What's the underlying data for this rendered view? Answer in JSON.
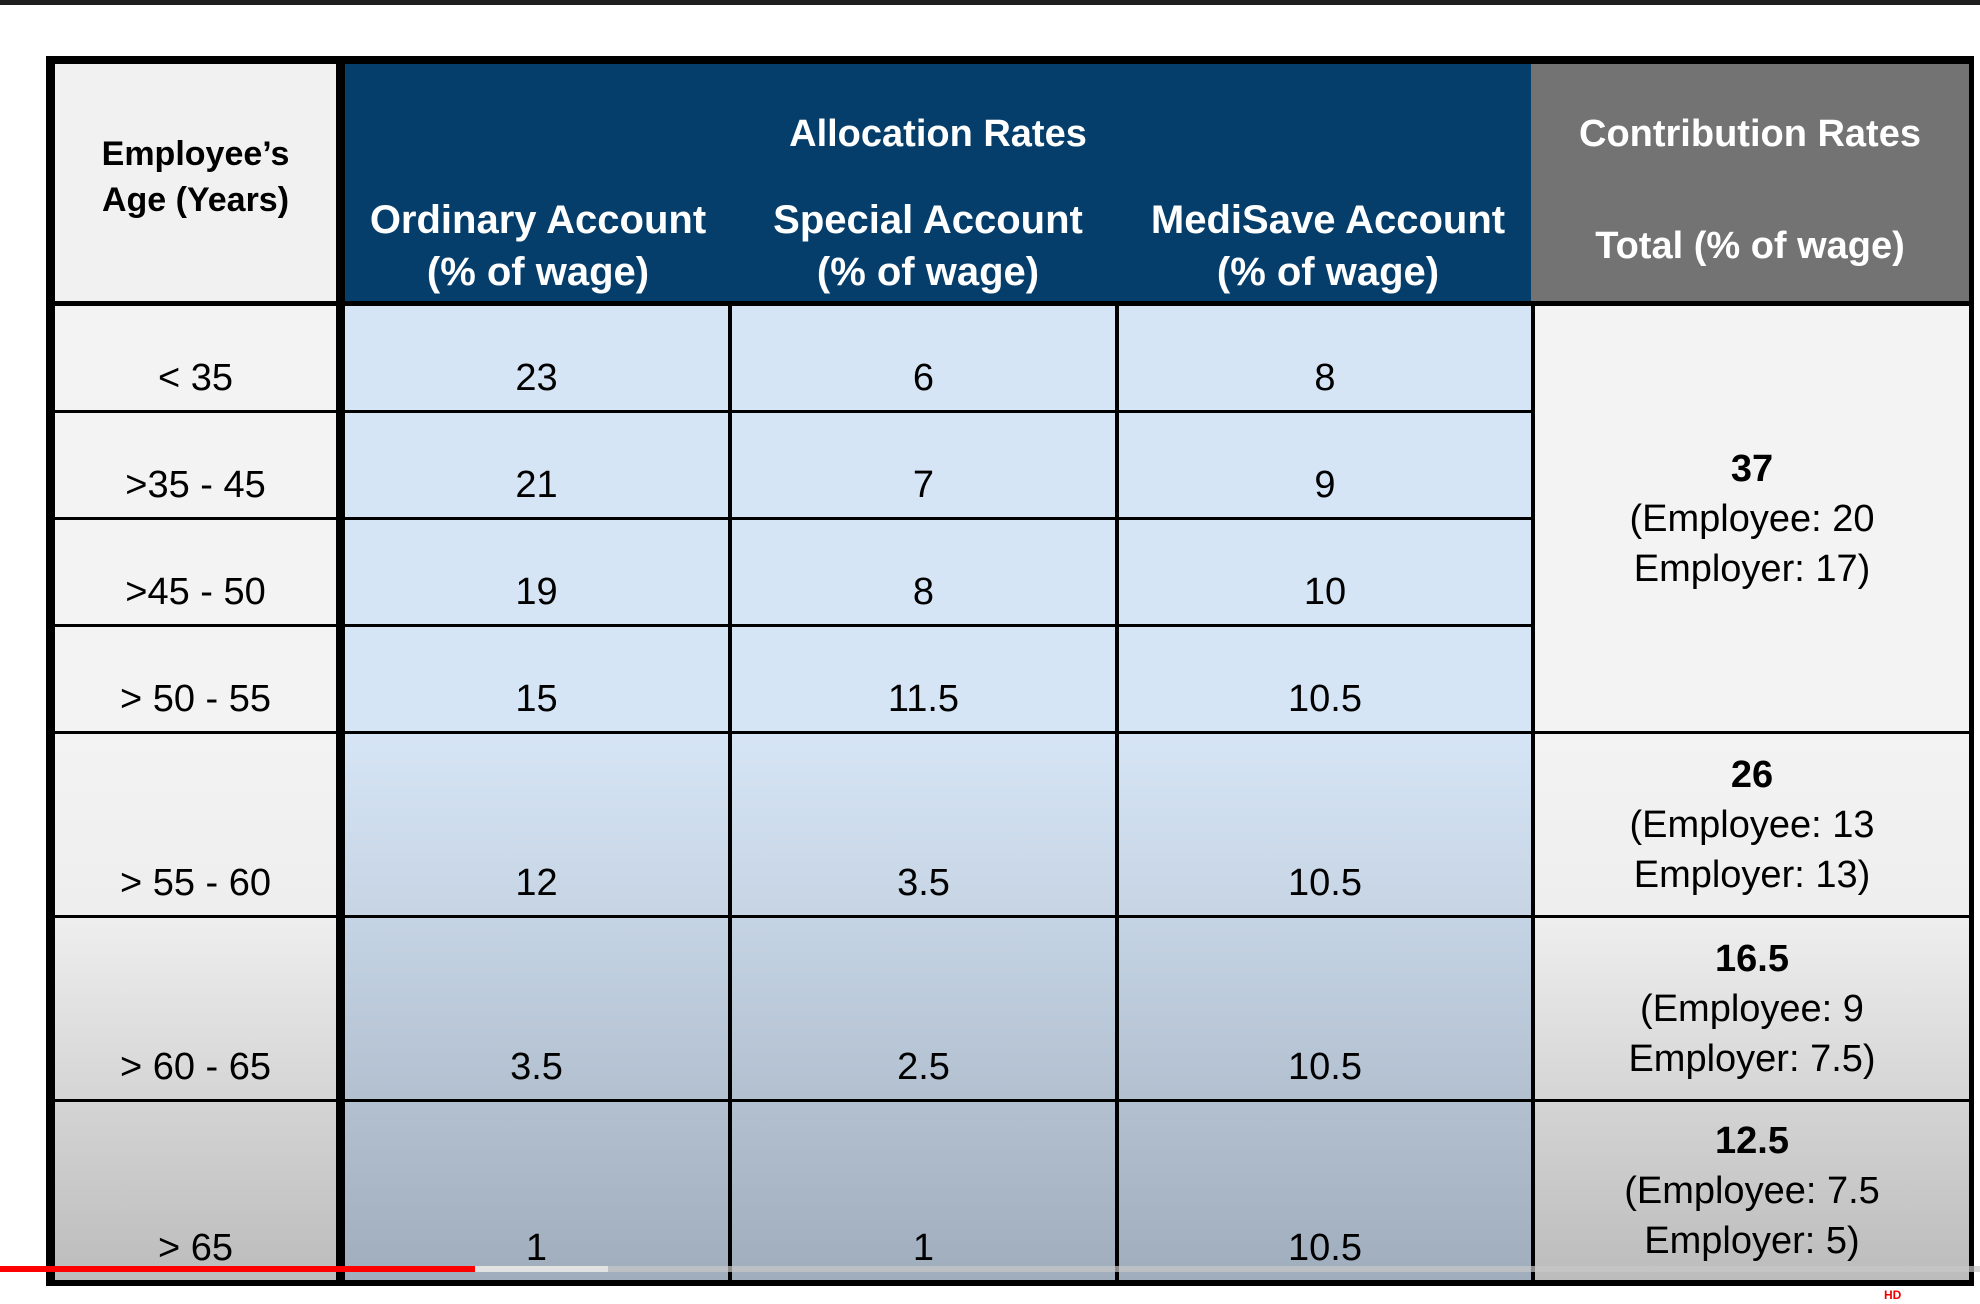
{
  "table": {
    "header": {
      "age": "Employee’s Age (Years)",
      "allocation_title": "Allocation Rates",
      "contribution_title": "Contribution Rates",
      "ordinary": "Ordinary Account\n(% of wage)",
      "special": "Special Account\n(% of wage)",
      "medisave": "MediSave Account\n(% of wage)",
      "total": "Total (% of wage)"
    },
    "rows": [
      {
        "age": "< 35",
        "oa": "23",
        "sa": "6",
        "ma": "8"
      },
      {
        "age": ">35 - 45",
        "oa": "21",
        "sa": "7",
        "ma": "9"
      },
      {
        "age": ">45 - 50",
        "oa": "19",
        "sa": "8",
        "ma": "10"
      },
      {
        "age": "> 50 - 55",
        "oa": "15",
        "sa": "11.5",
        "ma": "10.5"
      },
      {
        "age": "> 55 - 60",
        "oa": "12",
        "sa": "3.5",
        "ma": "10.5"
      },
      {
        "age": "> 60 - 65",
        "oa": "3.5",
        "sa": "2.5",
        "ma": "10.5"
      },
      {
        "age": "> 65",
        "oa": "1",
        "sa": "1",
        "ma": "10.5"
      }
    ],
    "contributions": [
      {
        "total": "37",
        "employee": "(Employee: 20",
        "employer": "Employer: 17)"
      },
      {
        "total": "26",
        "employee": "(Employee: 13",
        "employer": "Employer: 13)"
      },
      {
        "total": "16.5",
        "employee": "(Employee: 9",
        "employer": "Employer: 7.5)"
      },
      {
        "total": "12.5",
        "employee": "(Employee: 7.5",
        "employer": "Employer: 5)"
      }
    ]
  },
  "player": {
    "progress_fraction": 0.24,
    "buffered_fraction": 0.307,
    "accent": "#ff0000"
  },
  "colors": {
    "header_blue": "#063e6b",
    "header_gray": "#737373",
    "cell_light": "#f1f1f1",
    "cell_blue_top": "#d6e5f5",
    "cell_blue_bottom": "#9fadbd"
  }
}
